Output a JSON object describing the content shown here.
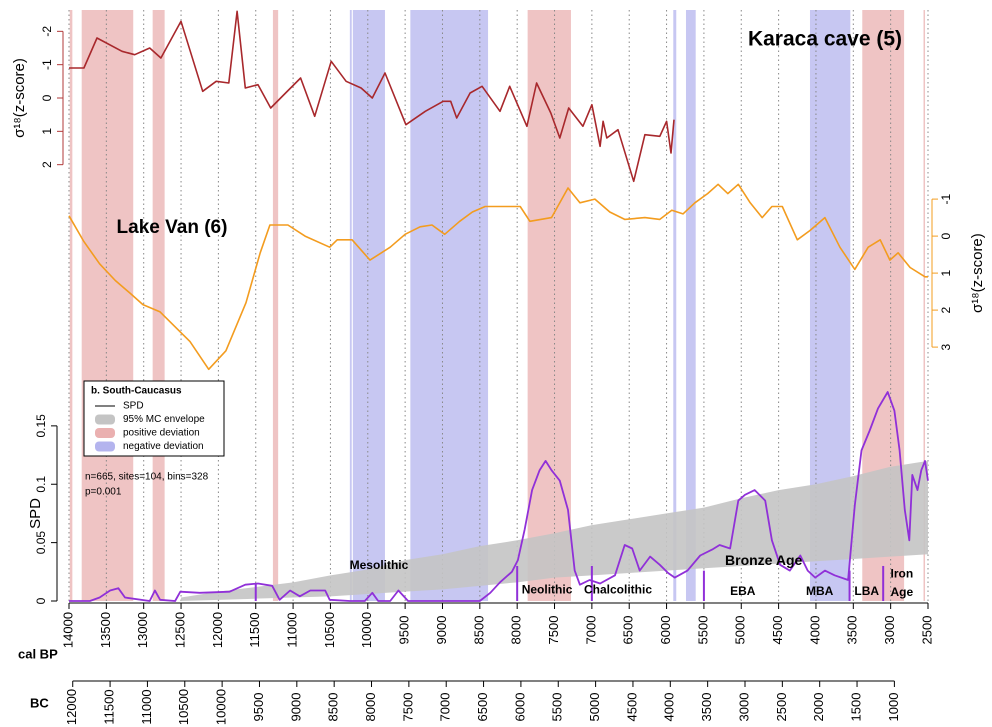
{
  "chart_data": {
    "type": "line",
    "xlabel": "cal BP",
    "xlim": [
      14000,
      2500
    ],
    "xticks": [
      14000,
      13500,
      13000,
      12500,
      12000,
      11500,
      11000,
      10500,
      10000,
      9500,
      9000,
      8500,
      8000,
      7500,
      7000,
      6500,
      6000,
      5500,
      5000,
      4500,
      4000,
      3500,
      3000,
      2500
    ],
    "x2label": "BC",
    "x2lim": [
      12050,
      550
    ],
    "x2ticks": [
      12000,
      11500,
      11000,
      10500,
      10000,
      9500,
      9000,
      8500,
      8000,
      7500,
      7000,
      6500,
      6000,
      5500,
      5000,
      4500,
      4000,
      3500,
      3000,
      2500,
      2000,
      1500,
      1000
    ],
    "grid": true,
    "legend_title": "b. South-Caucasus",
    "stats": [
      "n=665, sites=104, bins=328",
      "p=0.001"
    ],
    "panels": [
      {
        "ylabel": "σ¹⁸(z-score)",
        "ylim": [
          2.1,
          -2.4
        ],
        "yticks": [
          -2,
          -1,
          0,
          1,
          2
        ],
        "axis_side": "left",
        "color": "#b23a3a"
      },
      {
        "ylabel": "σ¹⁸(z-score)",
        "ylim": [
          3.7,
          -1.3
        ],
        "yticks": [
          -1,
          0,
          1,
          2,
          3
        ],
        "axis_side": "right",
        "color": "#f39c1f"
      },
      {
        "ylabel": "SPD",
        "ylim": [
          0,
          0.185
        ],
        "yticks": [
          0,
          0.05,
          0.1,
          0.15
        ],
        "axis_side": "left",
        "color": "#000000"
      }
    ],
    "series": [
      {
        "name": "Karaca cave (5)",
        "color": "#a8282c",
        "panel": 0,
        "x": [
          14000,
          13800,
          13625,
          13290,
          13120,
          12920,
          12770,
          12500,
          12210,
          12030,
          11860,
          11750,
          11640,
          11470,
          11300,
          11100,
          10900,
          10710,
          10490,
          10290,
          10090,
          9940,
          9770,
          9490,
          9230,
          8990,
          8890,
          8810,
          8630,
          8470,
          8230,
          8100,
          7870,
          7740,
          7550,
          7430,
          7310,
          7120,
          7000,
          6890,
          6850,
          6800,
          6650,
          6440,
          6290,
          6090,
          6000,
          5940,
          5900
        ],
        "values": [
          -0.9,
          -0.9,
          -1.8,
          -1.4,
          -1.3,
          -1.5,
          -1.2,
          -2.3,
          -0.2,
          -0.5,
          -0.45,
          -2.6,
          -0.3,
          -0.4,
          0.3,
          -0.15,
          -0.6,
          0.55,
          -1.1,
          -0.5,
          -0.3,
          0,
          -0.75,
          0.8,
          0.4,
          0.1,
          0.1,
          0.6,
          -0.15,
          -0.35,
          0.4,
          -0.35,
          0.85,
          -0.45,
          0.45,
          1.2,
          0.3,
          0.85,
          0.2,
          1.45,
          0.7,
          1.2,
          0.95,
          2.5,
          1.1,
          1.15,
          0.7,
          1.65,
          0.65
        ]
      },
      {
        "name": "Lake Van (6)",
        "color": "#f39c1f",
        "panel": 1,
        "x": [
          14000,
          13800,
          13590,
          13380,
          13180,
          13010,
          12780,
          12580,
          12380,
          12130,
          11900,
          11630,
          11440,
          11310,
          11070,
          10840,
          10510,
          10410,
          10210,
          9970,
          9700,
          9500,
          9300,
          9140,
          8970,
          8770,
          8600,
          8430,
          8260,
          7960,
          7830,
          7540,
          7320,
          7160,
          6960,
          6760,
          6560,
          6290,
          6090,
          5930,
          5780,
          5620,
          5450,
          5310,
          5180,
          5040,
          4880,
          4720,
          4590,
          4450,
          4250,
          4080,
          3880,
          3680,
          3480,
          3300,
          3140,
          3010,
          2900,
          2740,
          2540,
          2500
        ],
        "values": [
          -0.55,
          0.15,
          0.75,
          1.2,
          1.55,
          1.85,
          2.05,
          2.45,
          2.85,
          3.6,
          3.1,
          1.8,
          0.45,
          -0.3,
          -0.3,
          0,
          0.3,
          0.1,
          0.1,
          0.65,
          0.3,
          -0.05,
          -0.25,
          -0.3,
          -0.05,
          -0.4,
          -0.65,
          -0.8,
          -0.8,
          -0.8,
          -0.4,
          -0.5,
          -1.3,
          -0.9,
          -1.0,
          -0.65,
          -0.45,
          -0.5,
          -0.45,
          -0.7,
          -0.6,
          -0.9,
          -1.15,
          -1.4,
          -1.15,
          -1.4,
          -0.9,
          -0.5,
          -0.8,
          -0.8,
          0.1,
          -0.15,
          -0.5,
          0.3,
          0.9,
          0.3,
          0.1,
          0.65,
          0.45,
          0.85,
          1.1,
          1.1
        ]
      },
      {
        "name": "SPD",
        "color": "#9030d8",
        "panel": 2,
        "x": [
          14000,
          13720,
          13590,
          13450,
          13340,
          13250,
          12920,
          12850,
          12780,
          12580,
          12510,
          12250,
          11850,
          11640,
          11470,
          11280,
          11180,
          11040,
          10910,
          10770,
          10570,
          10510,
          10240,
          10040,
          9940,
          9860,
          9700,
          9590,
          9460,
          8500,
          8360,
          8230,
          8070,
          7990,
          7900,
          7800,
          7700,
          7620,
          7540,
          7430,
          7320,
          7230,
          7160,
          7030,
          6890,
          6690,
          6560,
          6460,
          6360,
          6220,
          6090,
          5980,
          5890,
          5720,
          5550,
          5390,
          5290,
          5150,
          5040,
          4950,
          4820,
          4680,
          4590,
          4480,
          4350,
          4210,
          4110,
          4010,
          3880,
          3750,
          3570,
          3480,
          3390,
          3280,
          3170,
          3040,
          2950,
          2880,
          2810,
          2750,
          2710,
          2640,
          2590,
          2540,
          2500
        ],
        "values": [
          0,
          0,
          0.003,
          0.009,
          0.011,
          0.003,
          0,
          0.009,
          0.001,
          0,
          0.008,
          0.007,
          0.008,
          0.014,
          0.015,
          0.013,
          0.001,
          0.009,
          0.004,
          0.009,
          0.009,
          0.001,
          0,
          0,
          0.007,
          0,
          0,
          0.009,
          0,
          0,
          0.007,
          0.016,
          0.025,
          0.035,
          0.061,
          0.095,
          0.112,
          0.12,
          0.112,
          0.103,
          0.078,
          0.026,
          0.014,
          0.018,
          0.015,
          0.022,
          0.048,
          0.045,
          0.026,
          0.038,
          0.031,
          0.024,
          0.02,
          0.026,
          0.039,
          0.044,
          0.048,
          0.045,
          0.086,
          0.091,
          0.095,
          0.086,
          0.052,
          0.031,
          0.026,
          0.039,
          0.026,
          0.02,
          0.026,
          0.022,
          0.018,
          0.082,
          0.129,
          0.146,
          0.165,
          0.179,
          0.163,
          0.129,
          0.078,
          0.052,
          0.108,
          0.095,
          0.112,
          0.12,
          0.103
        ]
      }
    ],
    "envelope": {
      "name": "95% MC envelope",
      "color": "#c4c4c4",
      "x": [
        12500,
        12000,
        11500,
        11000,
        10500,
        10000,
        9500,
        9000,
        8500,
        8000,
        7500,
        7000,
        6500,
        6000,
        5500,
        5000,
        4500,
        4000,
        3500,
        3000,
        2500
      ],
      "lower": [
        0,
        0.001,
        0.002,
        0.003,
        0.004,
        0.006,
        0.008,
        0.01,
        0.013,
        0.016,
        0.02,
        0.022,
        0.024,
        0.026,
        0.028,
        0.03,
        0.032,
        0.034,
        0.036,
        0.038,
        0.04
      ],
      "upper": [
        0.003,
        0.008,
        0.012,
        0.016,
        0.022,
        0.027,
        0.035,
        0.04,
        0.047,
        0.052,
        0.058,
        0.065,
        0.07,
        0.075,
        0.08,
        0.088,
        0.095,
        0.1,
        0.107,
        0.115,
        0.12
      ]
    },
    "bands": [
      {
        "name": "positive deviation",
        "color": "#eab0b0",
        "ranges": [
          [
            13990,
            13955
          ],
          [
            13830,
            13140
          ],
          [
            12880,
            12720
          ],
          [
            11270,
            11200
          ],
          [
            7860,
            7280
          ],
          [
            3380,
            2820
          ],
          [
            2560,
            2540
          ]
        ]
      },
      {
        "name": "negative deviation",
        "color": "#b4b4ee",
        "ranges": [
          [
            10240,
            10215
          ],
          [
            10200,
            9770
          ],
          [
            9430,
            8390
          ],
          [
            5910,
            5870
          ],
          [
            5740,
            5610
          ],
          [
            4080,
            3540
          ]
        ]
      }
    ],
    "periods": [
      {
        "label": "Mesolithic",
        "x": 9850,
        "y": 0.03
      },
      {
        "label": "Neolithic",
        "x": 7600,
        "y": 0.009
      },
      {
        "label": "Chalcolithic",
        "x": 6650,
        "y": 0.009
      },
      {
        "label": "Bronze Age",
        "x": 4700,
        "y": 0.034
      },
      {
        "label": "EBA",
        "x": 4980,
        "y": 0.008
      },
      {
        "label": "MBA",
        "x": 3950,
        "y": 0.008
      },
      {
        "label": "LBA",
        "x": 3320,
        "y": 0.008
      },
      {
        "label": "Iron",
        "x": 2850,
        "y": 0.023
      },
      {
        "label": "Age",
        "x": 2850,
        "y": 0.007
      }
    ],
    "period_boundaries": [
      [
        11500,
        0.015
      ],
      [
        8000,
        0.03
      ],
      [
        7000,
        0.03
      ],
      [
        5500,
        0.026
      ],
      [
        3550,
        0.026
      ],
      [
        3100,
        0.03
      ]
    ]
  }
}
